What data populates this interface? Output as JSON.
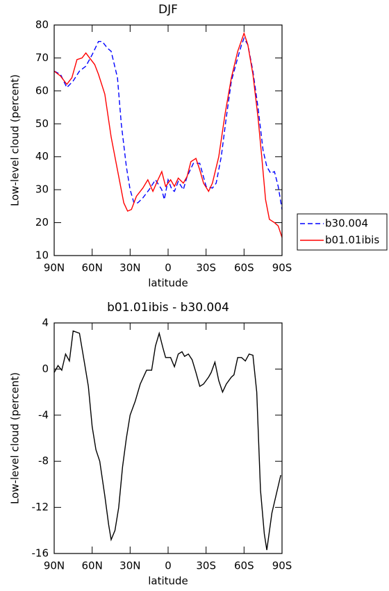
{
  "chart_data": [
    {
      "type": "line",
      "title": "DJF",
      "xlabel": "latitude",
      "ylabel": "Low-level cloud (percent)",
      "xlim": [
        90,
        -90
      ],
      "ylim": [
        10,
        80
      ],
      "xticks": [
        {
          "value": 90,
          "label": "90N"
        },
        {
          "value": 60,
          "label": "60N"
        },
        {
          "value": 30,
          "label": "30N"
        },
        0,
        {
          "value": -30,
          "label": "30S"
        },
        {
          "value": -60,
          "label": "60S"
        },
        {
          "value": -90,
          "label": "90S"
        }
      ],
      "yticks": [
        10,
        20,
        30,
        40,
        50,
        60,
        70,
        80
      ],
      "legend": "right",
      "series": [
        {
          "name": "b30.004",
          "color": "#0000ff",
          "dash": "dashed",
          "x": [
            90,
            85,
            80,
            75,
            70,
            65,
            60,
            55,
            52,
            48,
            45,
            40,
            37,
            33,
            30,
            27,
            24,
            20,
            15,
            10,
            5,
            3,
            0,
            -3,
            -5,
            -8,
            -12,
            -15,
            -20,
            -25,
            -30,
            -35,
            -38,
            -42,
            -46,
            -50,
            -55,
            -58,
            -60,
            -63,
            -67,
            -71,
            -75,
            -78,
            -81,
            -84,
            -87,
            -90
          ],
          "values": [
            66,
            65,
            61,
            63,
            66,
            67.5,
            71,
            75,
            75,
            73,
            72,
            64,
            50,
            37,
            30,
            26,
            26,
            27.5,
            30,
            33,
            30,
            27,
            33,
            30,
            29.5,
            32.5,
            30,
            34,
            38,
            38,
            31,
            30.5,
            32,
            40,
            52,
            63,
            70,
            74,
            76,
            74,
            66,
            55,
            42,
            37,
            35,
            35.5,
            31,
            24
          ]
        },
        {
          "name": "b01.01ibis",
          "color": "#ff0000",
          "x": [
            90,
            85,
            80,
            76,
            72,
            68,
            65,
            62,
            58,
            55,
            50,
            45,
            40,
            35,
            32,
            29,
            25,
            20,
            16,
            12,
            8,
            5,
            2,
            -2,
            -5,
            -8,
            -12,
            -15,
            -18,
            -22,
            -25,
            -28,
            -32,
            -35,
            -40,
            -45,
            -50,
            -55,
            -60,
            -63,
            -67,
            -71,
            -74,
            -77,
            -80,
            -84,
            -87,
            -90
          ],
          "values": [
            66,
            64.5,
            62,
            64,
            69.5,
            70,
            71.5,
            70,
            68,
            65,
            59,
            46,
            36,
            26,
            23.5,
            24,
            28,
            30.5,
            33,
            29.5,
            33,
            35.5,
            31,
            33,
            31,
            33.5,
            32,
            34,
            38.5,
            39.5,
            36,
            32,
            29.5,
            32,
            40,
            53,
            64,
            72,
            77.5,
            74,
            65,
            52,
            40,
            27,
            21,
            20,
            19,
            15.5
          ]
        }
      ]
    },
    {
      "type": "line",
      "title": "b01.01ibis - b30.004",
      "xlabel": "latitude",
      "ylabel": "Low-level cloud (percent)",
      "xlim": [
        90,
        -90
      ],
      "ylim": [
        -16,
        4
      ],
      "xticks": [
        {
          "value": 90,
          "label": "90N"
        },
        {
          "value": 60,
          "label": "60N"
        },
        {
          "value": 30,
          "label": "30N"
        },
        0,
        {
          "value": -30,
          "label": "30S"
        },
        {
          "value": -60,
          "label": "60S"
        },
        {
          "value": -90,
          "label": "90S"
        }
      ],
      "yticks": [
        -16,
        -12,
        -8,
        -4,
        0,
        4
      ],
      "series": [
        {
          "color": "#000000",
          "x": [
            90,
            87,
            84,
            81,
            78,
            75,
            70,
            66,
            63,
            60,
            57,
            54,
            50,
            47,
            45,
            42,
            39,
            36,
            33,
            30,
            26,
            22,
            17,
            13,
            10,
            7,
            4,
            2,
            -2,
            -5,
            -8,
            -11,
            -13,
            -16,
            -19,
            -22,
            -25,
            -28,
            -32,
            -34,
            -37,
            -40,
            -43,
            -46,
            -50,
            -52,
            -55,
            -58,
            -61,
            -64,
            -67,
            -70,
            -73,
            -76,
            -78,
            -82,
            -89
          ],
          "values": [
            -0.3,
            0.3,
            -0.1,
            1.3,
            0.7,
            3.3,
            3.1,
            0.5,
            -1.5,
            -5,
            -7,
            -8,
            -11,
            -13.5,
            -14.8,
            -14,
            -12,
            -8.5,
            -6,
            -4,
            -2.8,
            -1.3,
            -0.1,
            -0.1,
            2,
            3.1,
            1.8,
            1,
            1,
            0.2,
            1.3,
            1.5,
            1.1,
            1.3,
            0.8,
            -0.3,
            -1.5,
            -1.3,
            -0.7,
            -0.3,
            0.6,
            -1,
            -2,
            -1.3,
            -0.7,
            -0.5,
            1,
            1,
            0.7,
            1.3,
            1.2,
            -2,
            -10.5,
            -14.3,
            -15.7,
            -12.5,
            -9.2
          ]
        }
      ]
    }
  ]
}
